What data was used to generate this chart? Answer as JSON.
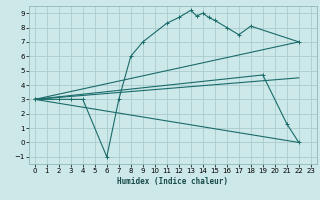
{
  "xlabel": "Humidex (Indice chaleur)",
  "bg_color": "#cde8e8",
  "grid_color": "#aacccc",
  "line_color": "#1a6b6b",
  "xlim": [
    -0.5,
    23.5
  ],
  "ylim": [
    -1.5,
    9.5
  ],
  "xticks": [
    0,
    1,
    2,
    3,
    4,
    5,
    6,
    7,
    8,
    9,
    10,
    11,
    12,
    13,
    14,
    15,
    16,
    17,
    18,
    19,
    20,
    21,
    22,
    23
  ],
  "yticks": [
    -1,
    0,
    1,
    2,
    3,
    4,
    5,
    6,
    7,
    8,
    9
  ],
  "lines": [
    {
      "x": [
        0,
        2,
        3,
        4,
        6,
        7,
        8,
        9,
        11,
        12,
        13,
        13.5,
        14,
        14.5,
        15,
        16,
        17,
        18,
        22
      ],
      "y": [
        3,
        3,
        3,
        3,
        -1,
        3,
        6,
        7,
        8.3,
        8.7,
        9.2,
        8.8,
        9.0,
        8.7,
        8.5,
        8.0,
        7.5,
        8.1,
        7.0
      ],
      "marker": "+"
    },
    {
      "x": [
        0,
        22
      ],
      "y": [
        3,
        7.0
      ],
      "marker": null
    },
    {
      "x": [
        0,
        22
      ],
      "y": [
        3,
        4.5
      ],
      "marker": null
    },
    {
      "x": [
        0,
        19,
        21,
        22
      ],
      "y": [
        3,
        4.7,
        1.3,
        0.0
      ],
      "marker": "+"
    },
    {
      "x": [
        0,
        22
      ],
      "y": [
        3,
        0.0
      ],
      "marker": null
    }
  ]
}
